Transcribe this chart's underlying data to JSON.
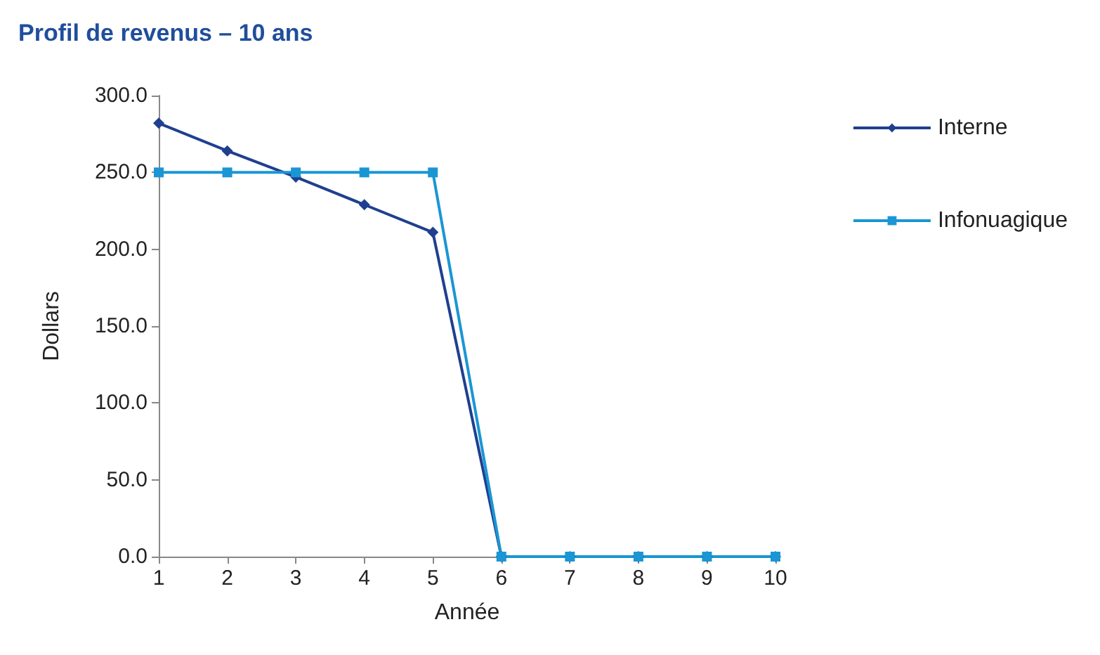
{
  "chart_data": {
    "type": "line",
    "title": "Profil de revenus – 10 ans",
    "xlabel": "Année",
    "ylabel": "Dollars",
    "x": [
      1,
      2,
      3,
      4,
      5,
      6,
      7,
      8,
      9,
      10
    ],
    "series": [
      {
        "name": "Interne",
        "color": "#1f3f8f",
        "marker": "diamond",
        "values": [
          282,
          264,
          247,
          229,
          211,
          0,
          0,
          0,
          0,
          0
        ]
      },
      {
        "name": "Infonuagique",
        "color": "#1a96d4",
        "marker": "square",
        "values": [
          250,
          250,
          250,
          250,
          250,
          0,
          0,
          0,
          0,
          0
        ]
      }
    ],
    "xlim": [
      1,
      10
    ],
    "xticks": [
      1,
      2,
      3,
      4,
      5,
      6,
      7,
      8,
      9,
      10
    ],
    "ylim": [
      0,
      300
    ],
    "yticks": [
      {
        "value": 0,
        "label": "0.0"
      },
      {
        "value": 50,
        "label": "50.0"
      },
      {
        "value": 100,
        "label": "100.0"
      },
      {
        "value": 150,
        "label": "150.0"
      },
      {
        "value": 200,
        "label": "200.0"
      },
      {
        "value": 250,
        "label": "250.0"
      },
      {
        "value": 300,
        "label": "300.0"
      }
    ],
    "grid": false,
    "legend": "right",
    "line_style": "solid"
  }
}
